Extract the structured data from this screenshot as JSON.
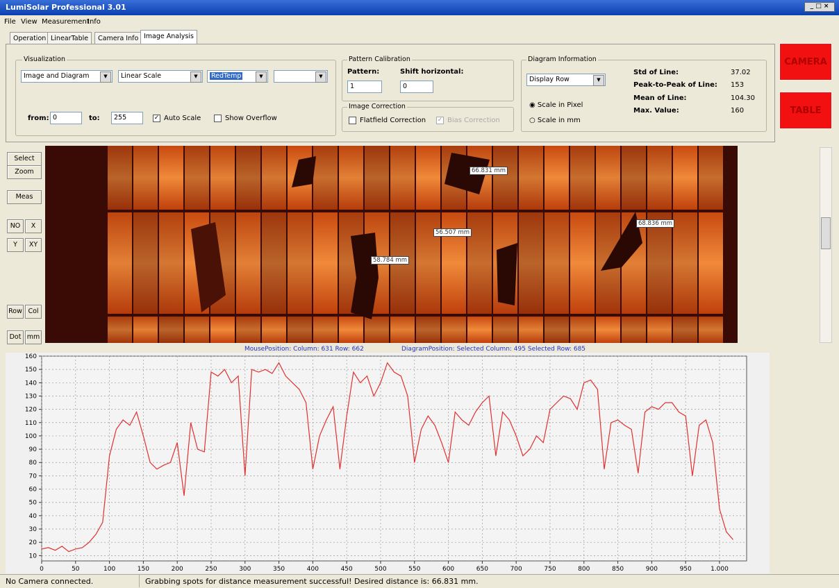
{
  "window": {
    "title": "LumiSolar Professional 3.01"
  },
  "menu": [
    "File",
    "View",
    "Measurement",
    "Info"
  ],
  "tabs": [
    "Operation",
    "LinearTable",
    "Camera Info",
    "Image Analysis"
  ],
  "visualization": {
    "label": "Visualization",
    "dropdowns": [
      "Image and Diagram",
      "Linear Scale",
      "RedTemp"
    ],
    "from_label": "from:",
    "from": "0",
    "to_label": "to:",
    "to": "255",
    "auto_scale": "Auto Scale",
    "show_overflow": "Show Overflow"
  },
  "pattern_calibration": {
    "label": "Pattern Calibration",
    "pattern_label": "Pattern:",
    "pattern": "1",
    "shift_label": "Shift horizontal:",
    "shift": "0"
  },
  "image_correction": {
    "label": "Image Correction",
    "flatfield": "Flatfield Correction",
    "bias": "Bias Correction"
  },
  "diagram_information": {
    "label": "Diagram Information",
    "mode": "Display Row",
    "scale_pixel": "Scale in Pixel",
    "scale_mm": "Scale in mm",
    "stats": [
      {
        "label": "Std of Line:",
        "value": "37.02"
      },
      {
        "label": "Peak-to-Peak of Line:",
        "value": "153"
      },
      {
        "label": "Mean of Line:",
        "value": "104.30"
      },
      {
        "label": "Max. Value:",
        "value": "160"
      }
    ]
  },
  "buttons": [
    "CAMERA",
    "TABLE"
  ],
  "toolbar": [
    "Select",
    "Zoom",
    "Meas",
    "NO",
    "X",
    "Y",
    "XY",
    "Row",
    "Col",
    "Dot",
    "mm"
  ],
  "image": {
    "measurements": [
      "66.831 mm",
      "56.507 mm",
      "58.784 mm",
      "68.836 mm"
    ]
  },
  "positions": [
    "MousePosition: Column: 631 Row: 662",
    "DiagramPosition: Selected Column: 495 Selected Row: 685"
  ],
  "chart_data": {
    "type": "line",
    "color": "#e03030",
    "grid": true,
    "x": [
      0,
      10,
      20,
      30,
      40,
      50,
      60,
      70,
      80,
      90,
      100,
      110,
      120,
      130,
      140,
      150,
      160,
      170,
      180,
      190,
      200,
      210,
      220,
      230,
      240,
      250,
      260,
      270,
      280,
      290,
      300,
      310,
      320,
      330,
      340,
      350,
      360,
      370,
      380,
      390,
      400,
      410,
      420,
      430,
      440,
      450,
      460,
      470,
      480,
      490,
      500,
      510,
      520,
      530,
      540,
      550,
      560,
      570,
      580,
      590,
      600,
      610,
      620,
      630,
      640,
      650,
      660,
      670,
      680,
      690,
      700,
      710,
      720,
      730,
      740,
      750,
      760,
      770,
      780,
      790,
      800,
      810,
      820,
      830,
      840,
      850,
      860,
      870,
      880,
      890,
      900,
      910,
      920,
      930,
      940,
      950,
      960,
      970,
      980,
      990,
      1000,
      1010,
      1020
    ],
    "values": [
      15,
      16,
      14,
      17,
      13,
      15,
      16,
      20,
      26,
      35,
      85,
      105,
      112,
      108,
      118,
      100,
      80,
      75,
      78,
      80,
      95,
      55,
      110,
      90,
      88,
      148,
      145,
      150,
      140,
      145,
      70,
      150,
      148,
      150,
      147,
      155,
      145,
      140,
      135,
      125,
      75,
      100,
      112,
      122,
      75,
      115,
      148,
      140,
      145,
      130,
      140,
      155,
      148,
      145,
      130,
      80,
      105,
      115,
      108,
      95,
      80,
      118,
      112,
      108,
      118,
      125,
      130,
      85,
      118,
      112,
      100,
      85,
      90,
      100,
      95,
      120,
      125,
      130,
      128,
      120,
      140,
      142,
      135,
      75,
      110,
      112,
      108,
      105,
      72,
      118,
      122,
      120,
      125,
      125,
      118,
      115,
      70,
      108,
      112,
      95,
      45,
      28,
      22
    ],
    "xlim": [
      0,
      1040
    ],
    "ylim": [
      6,
      160
    ],
    "xticks": [
      0,
      50,
      100,
      150,
      200,
      250,
      300,
      350,
      400,
      450,
      500,
      550,
      600,
      650,
      700,
      750,
      800,
      850,
      900,
      950,
      {
        "value": 1000,
        "label": "1.000"
      }
    ],
    "yticks": [
      10,
      20,
      30,
      40,
      50,
      60,
      70,
      80,
      90,
      100,
      110,
      120,
      130,
      140,
      150,
      160
    ]
  },
  "status": [
    "No Camera connected.",
    "Grabbing spots for distance measurement successful! Desired distance is:  66.831 mm."
  ]
}
